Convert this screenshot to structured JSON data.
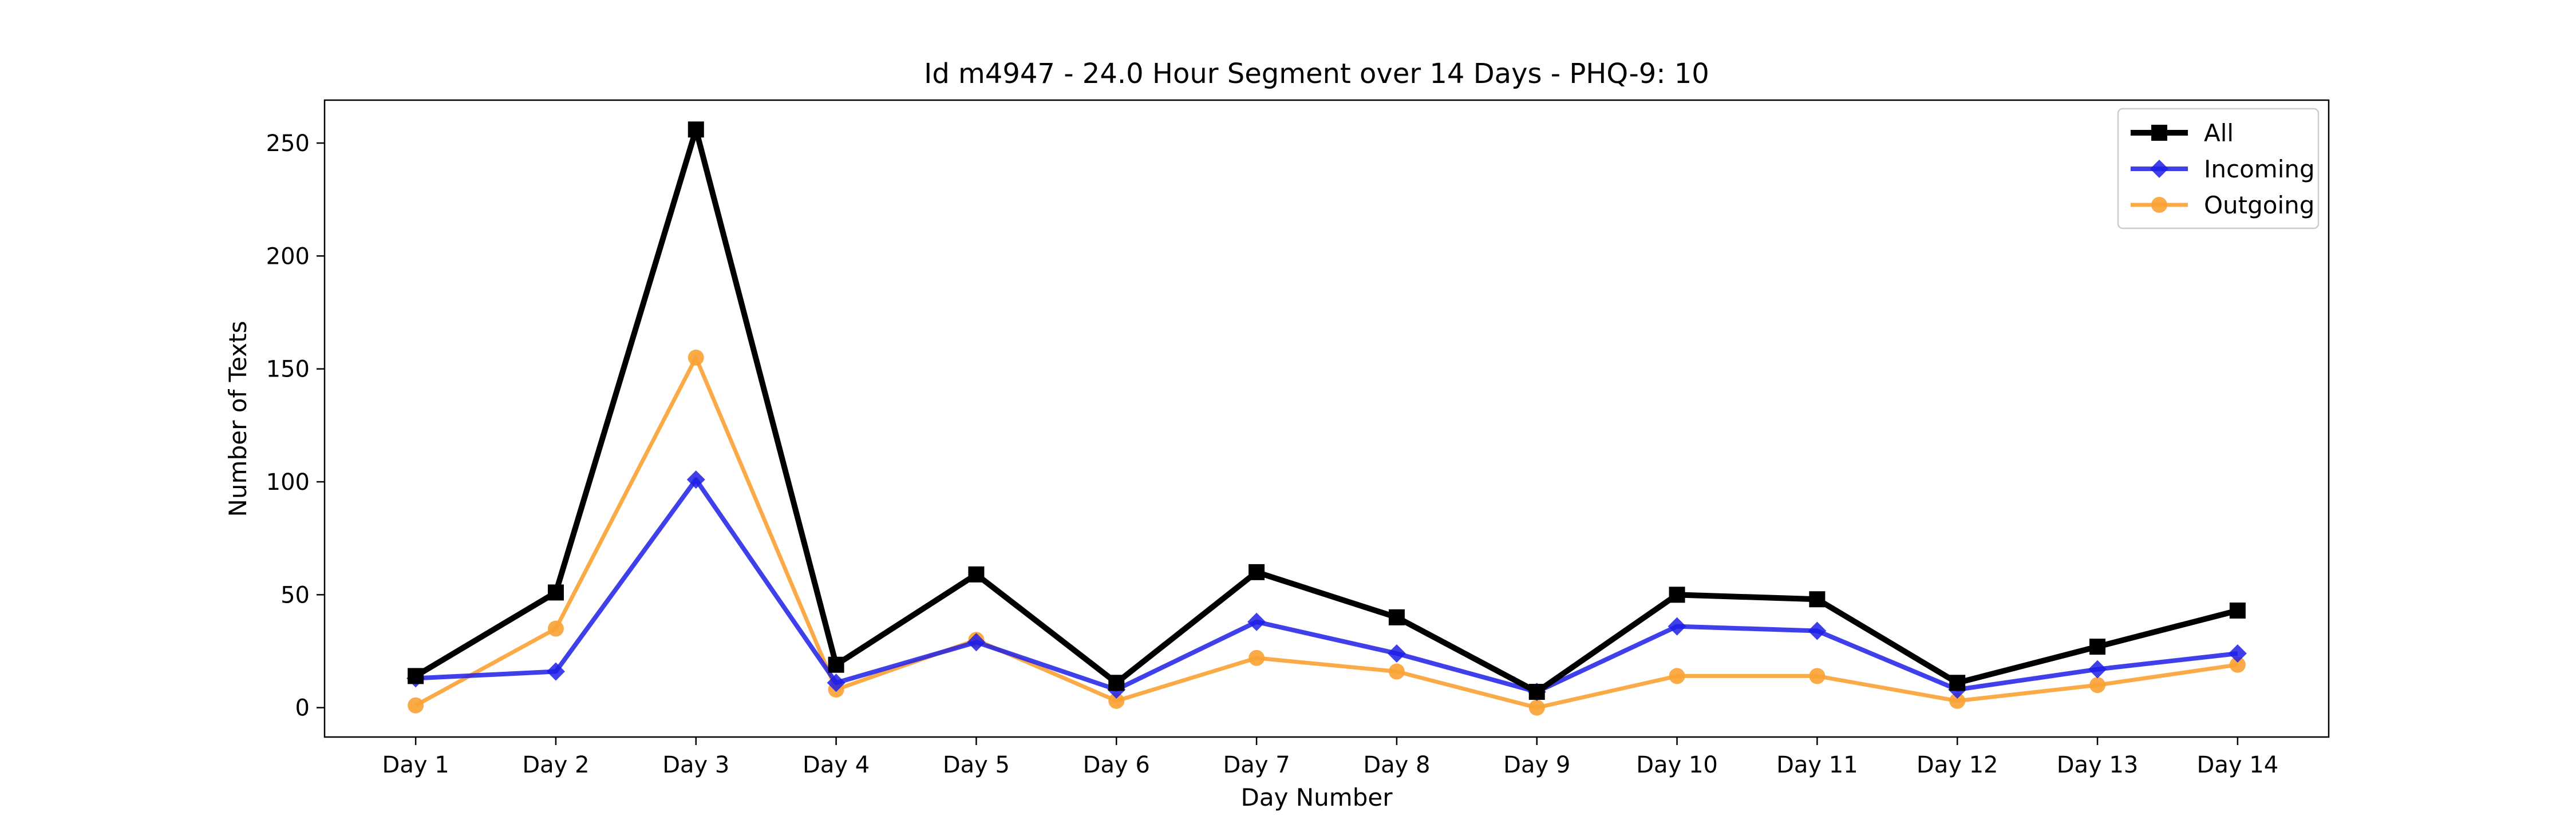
{
  "chart_data": {
    "type": "line",
    "title": "Id m4947 - 24.0 Hour Segment over 14 Days - PHQ-9: 10",
    "xlabel": "Day Number",
    "ylabel": "Number of Texts",
    "categories": [
      "Day 1",
      "Day 2",
      "Day 3",
      "Day 4",
      "Day 5",
      "Day 6",
      "Day 7",
      "Day 8",
      "Day 9",
      "Day 10",
      "Day 11",
      "Day 12",
      "Day 13",
      "Day 14"
    ],
    "ylim": [
      -13,
      269
    ],
    "yticks": [
      0,
      50,
      100,
      150,
      200,
      250
    ],
    "grid": false,
    "legend_position": "top-right",
    "series": [
      {
        "name": "All",
        "color": "#000000",
        "marker": "square",
        "values": [
          14,
          51,
          256,
          19,
          59,
          11,
          60,
          40,
          7,
          50,
          48,
          11,
          27,
          43
        ]
      },
      {
        "name": "Incoming",
        "color": "#1f1fe6",
        "marker": "diamond",
        "values": [
          13,
          16,
          101,
          11,
          29,
          8,
          38,
          24,
          7,
          36,
          34,
          8,
          17,
          24
        ]
      },
      {
        "name": "Outgoing",
        "color": "#f9a234",
        "marker": "circle",
        "values": [
          1,
          35,
          155,
          8,
          30,
          3,
          22,
          16,
          0,
          14,
          14,
          3,
          10,
          19
        ]
      }
    ]
  }
}
